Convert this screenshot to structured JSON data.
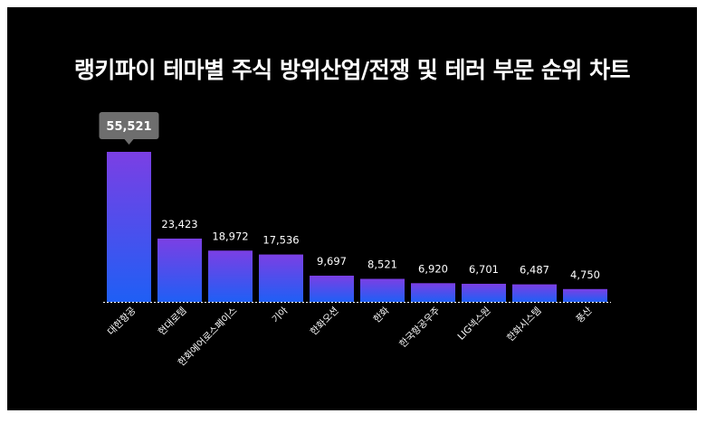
{
  "title": "랭키파이 테마별 주식 방위산업/전쟁 및 테러 부문 순위 차트",
  "colors": {
    "background": "#000000",
    "bar_top": "#7b3fe4",
    "bar_bottom": "#1f5ff5",
    "callout": "#6e6e6e",
    "baseline": "#ffffff"
  },
  "chart_data": {
    "type": "bar",
    "title": "랭키파이 테마별 주식 방위산업/전쟁 및 테러 부문 순위 차트",
    "categories": [
      "대한항공",
      "현대로템",
      "한화에어로스페이스",
      "기아",
      "한화오션",
      "한화",
      "한국항공우주",
      "LIG넥스원",
      "한화시스템",
      "풍산"
    ],
    "values": [
      55521,
      23423,
      18972,
      17536,
      9697,
      8521,
      6920,
      6701,
      6487,
      4750
    ],
    "value_labels": [
      "55,521",
      "23,423",
      "18,972",
      "17,536",
      "9,697",
      "8,521",
      "6,920",
      "6,701",
      "6,487",
      "4,750"
    ],
    "highlight_index": 0,
    "xlabel": "",
    "ylabel": "",
    "ylim": [
      0,
      55521
    ],
    "grid": false,
    "legend": "none"
  }
}
